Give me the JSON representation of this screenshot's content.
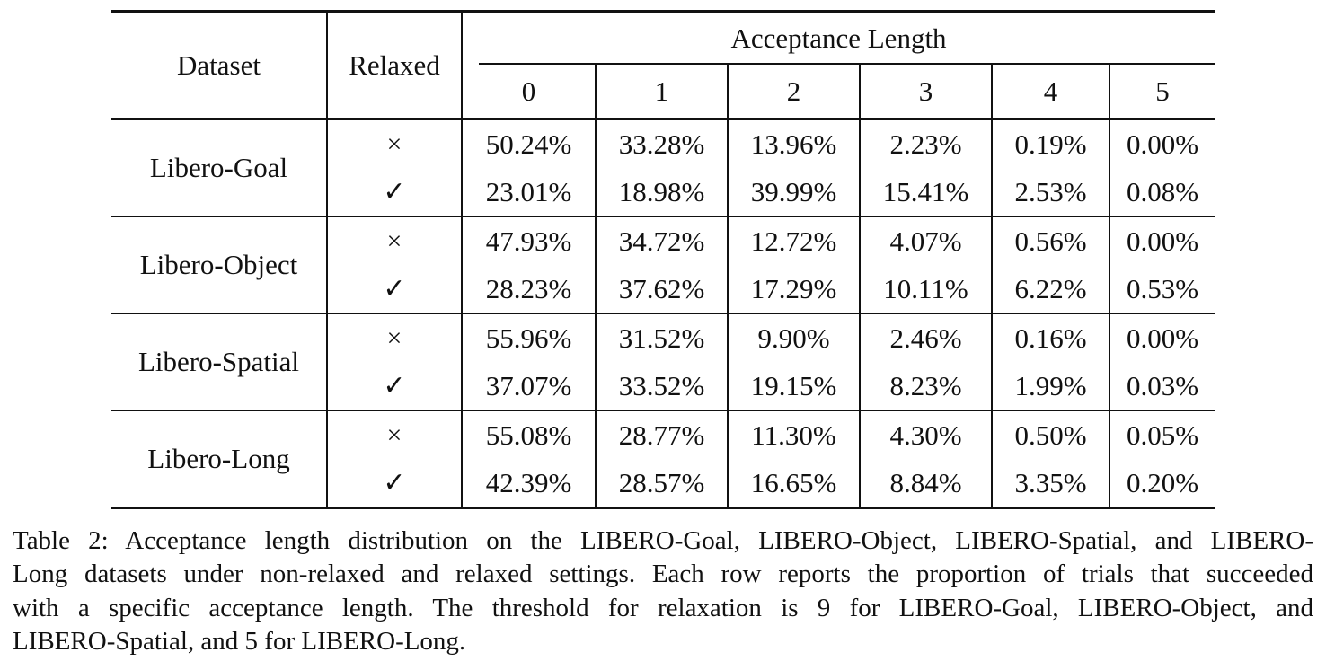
{
  "page": {
    "background": "#ffffff",
    "text_color": "#111111",
    "rule_color": "#111111"
  },
  "table": {
    "headers": {
      "dataset": "Dataset",
      "relaxed": "Relaxed",
      "span": "Acceptance Length",
      "lengths": [
        "0",
        "1",
        "2",
        "3",
        "4",
        "5"
      ]
    },
    "groups": [
      {
        "dataset": "Libero-Goal",
        "rows": [
          {
            "relaxed": "×",
            "values": [
              "50.24%",
              "33.28%",
              "13.96%",
              "2.23%",
              "0.19%",
              "0.00%"
            ]
          },
          {
            "relaxed": "✓",
            "values": [
              "23.01%",
              "18.98%",
              "39.99%",
              "15.41%",
              "2.53%",
              "0.08%"
            ]
          }
        ]
      },
      {
        "dataset": "Libero-Object",
        "rows": [
          {
            "relaxed": "×",
            "values": [
              "47.93%",
              "34.72%",
              "12.72%",
              "4.07%",
              "0.56%",
              "0.00%"
            ]
          },
          {
            "relaxed": "✓",
            "values": [
              "28.23%",
              "37.62%",
              "17.29%",
              "10.11%",
              "6.22%",
              "0.53%"
            ]
          }
        ]
      },
      {
        "dataset": "Libero-Spatial",
        "rows": [
          {
            "relaxed": "×",
            "values": [
              "55.96%",
              "31.52%",
              "9.90%",
              "2.46%",
              "0.16%",
              "0.00%"
            ]
          },
          {
            "relaxed": "✓",
            "values": [
              "37.07%",
              "33.52%",
              "19.15%",
              "8.23%",
              "1.99%",
              "0.03%"
            ]
          }
        ]
      },
      {
        "dataset": "Libero-Long",
        "rows": [
          {
            "relaxed": "×",
            "values": [
              "55.08%",
              "28.77%",
              "11.30%",
              "4.30%",
              "0.50%",
              "0.05%"
            ]
          },
          {
            "relaxed": "✓",
            "values": [
              "42.39%",
              "28.57%",
              "16.65%",
              "8.84%",
              "3.35%",
              "0.20%"
            ]
          }
        ]
      }
    ]
  },
  "caption": {
    "lines": [
      "Table 2: Acceptance length distribution on the LIBERO-Goal, LIBERO-Object, LIBERO-Spatial, and LIBERO-",
      "Long datasets under non-relaxed and relaxed settings. Each row reports the proportion of trials that succeeded",
      "with a specific acceptance length. The threshold for relaxation is 9 for LIBERO-Goal, LIBERO-Object, and",
      "LIBERO-Spatial, and 5 for LIBERO-Long."
    ]
  }
}
